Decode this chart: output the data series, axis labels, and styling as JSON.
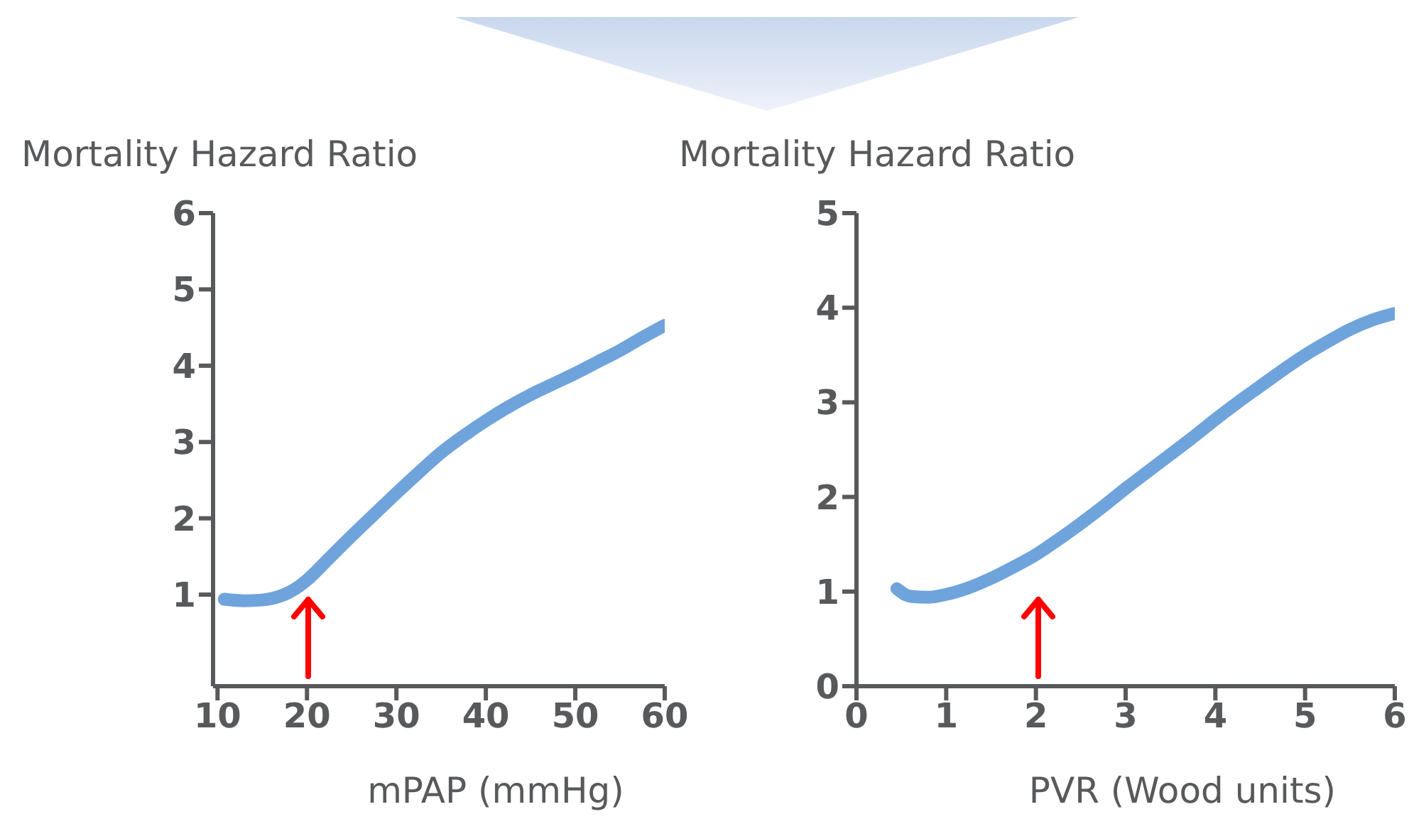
{
  "chart_data": [
    {
      "type": "line",
      "ylabel": "Mortality Hazard Ratio",
      "xlabel": "mPAP (mmHg)",
      "xlim": [
        9.5,
        60
      ],
      "xticks": [
        10,
        20,
        30,
        40,
        50,
        60
      ],
      "ylim": [
        -0.2,
        6
      ],
      "yticks": [
        1,
        2,
        3,
        4,
        5,
        6
      ],
      "grid": false,
      "legend": false,
      "series": [
        {
          "color": "#6fa3dc",
          "x": [
            10.75,
            13,
            15,
            17,
            18,
            19,
            20,
            22.5,
            25,
            27.5,
            30,
            32.5,
            35,
            37.5,
            40,
            42.5,
            45,
            47.5,
            50,
            52.5,
            55,
            57.5,
            60
          ],
          "values": [
            0.94,
            0.92,
            0.93,
            0.98,
            1.03,
            1.1,
            1.19,
            1.48,
            1.77,
            2.05,
            2.33,
            2.6,
            2.86,
            3.08,
            3.28,
            3.46,
            3.62,
            3.76,
            3.9,
            4.05,
            4.2,
            4.37,
            4.53
          ]
        }
      ]
    },
    {
      "type": "line",
      "ylabel": "Mortality Hazard Ratio",
      "xlabel": "PVR (Wood units)",
      "xlim": [
        0,
        6
      ],
      "xticks": [
        0,
        1,
        2,
        3,
        4,
        5,
        6
      ],
      "ylim": [
        0,
        5
      ],
      "yticks": [
        0,
        1,
        2,
        3,
        4,
        5
      ],
      "grid": false,
      "legend": false,
      "series": [
        {
          "color": "#6fa3dc",
          "x": [
            0.45,
            0.6,
            0.8,
            1,
            1.25,
            1.5,
            1.75,
            2,
            2.25,
            2.5,
            2.75,
            3,
            3.25,
            3.5,
            3.75,
            4,
            4.25,
            4.5,
            4.75,
            5,
            5.25,
            5.5,
            5.75,
            6
          ],
          "values": [
            1.03,
            0.95,
            0.94,
            0.97,
            1.04,
            1.14,
            1.26,
            1.39,
            1.55,
            1.72,
            1.9,
            2.09,
            2.27,
            2.45,
            2.63,
            2.82,
            3,
            3.17,
            3.34,
            3.5,
            3.64,
            3.77,
            3.87,
            3.94
          ]
        }
      ]
    }
  ]
}
